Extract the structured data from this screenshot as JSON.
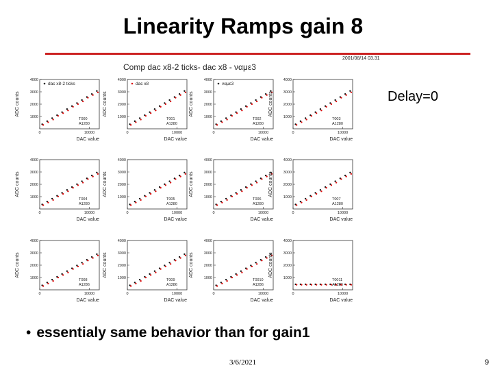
{
  "slide": {
    "title": "Linearity Ramps gain 8",
    "plot_header": "Comp dac x8-2 ticks- dac x8 - ναμε3",
    "plot_date": "2001/08/14  03.31",
    "delay_label": "Delay=0",
    "bullet_text": "essentialy same behavior than for gain1",
    "footer_date": "3/6/2021",
    "page_number": "9"
  },
  "colors": {
    "title_rule": "#cc2222",
    "series_black": "#111111",
    "series_red": "#dd1111"
  },
  "chart_data": {
    "type": "scatter",
    "xlabel": "DAC value",
    "ylabel": "ADC counts",
    "xlim": [
      0,
      12000
    ],
    "ylim": [
      0,
      4000
    ],
    "xticks": [
      "0",
      "10000"
    ],
    "yticks": [
      "1000",
      "2000",
      "3000",
      "4000"
    ],
    "legends": [
      "dac x8-2 ticks",
      "dac x8",
      "ναμε3"
    ],
    "x": [
      500,
      1500,
      2500,
      3500,
      4500,
      5500,
      6500,
      7500,
      8500,
      9500,
      10500,
      11500
    ],
    "panels": [
      {
        "label": "T000",
        "sublabel": "A1280",
        "slope": 0.245,
        "offset": 250,
        "dip": false,
        "row": 0,
        "col": 0
      },
      {
        "label": "T001",
        "sublabel": "A1280",
        "slope": 0.245,
        "offset": 250,
        "dip": false,
        "row": 0,
        "col": 1
      },
      {
        "label": "T002",
        "sublabel": "A1280",
        "slope": 0.245,
        "offset": 250,
        "dip": false,
        "row": 0,
        "col": 2
      },
      {
        "label": "T003",
        "sublabel": "A1280",
        "slope": 0.245,
        "offset": 250,
        "dip": false,
        "row": 0,
        "col": 3
      },
      {
        "label": "T004",
        "sublabel": "A1280",
        "slope": 0.235,
        "offset": 250,
        "dip": false,
        "row": 1,
        "col": 0
      },
      {
        "label": "T005",
        "sublabel": "A1280",
        "slope": 0.235,
        "offset": 250,
        "dip": false,
        "row": 1,
        "col": 1
      },
      {
        "label": "T006",
        "sublabel": "A1280",
        "slope": 0.235,
        "offset": 250,
        "dip": false,
        "row": 1,
        "col": 2
      },
      {
        "label": "T007",
        "sublabel": "A1280",
        "slope": 0.235,
        "offset": 250,
        "dip": false,
        "row": 1,
        "col": 3
      },
      {
        "label": "T008",
        "sublabel": "A1286",
        "slope": 0.23,
        "offset": 250,
        "dip": false,
        "row": 2,
        "col": 0
      },
      {
        "label": "T009",
        "sublabel": "A1286",
        "slope": 0.23,
        "offset": 250,
        "dip": false,
        "row": 2,
        "col": 1
      },
      {
        "label": "T0010",
        "sublabel": "A1286",
        "slope": 0.23,
        "offset": 250,
        "dip": false,
        "row": 2,
        "col": 2
      },
      {
        "label": "T0011",
        "sublabel": "A1286",
        "slope": 0.0,
        "offset": 450,
        "dip": true,
        "row": 2,
        "col": 3
      }
    ]
  }
}
